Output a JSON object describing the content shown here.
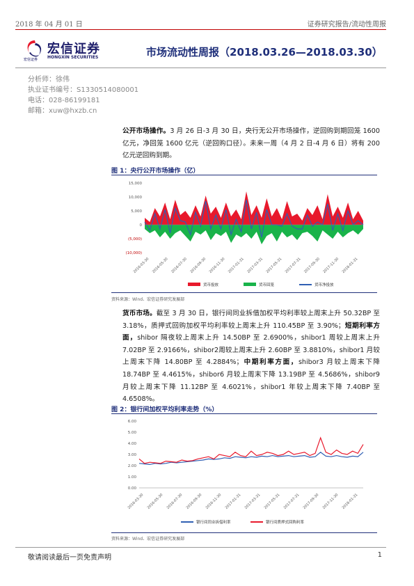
{
  "header": {
    "date": "2018 年 04 月 01 日",
    "category": "证券研究报告/流动性周报",
    "logo_cn": "宏信证券",
    "logo_en": "HONGXIN SECURITIES",
    "logo_small": "宏信证券",
    "title": "市场流动性周报（2018.03.26—2018.03.30）"
  },
  "analyst": {
    "name": "分析师：徐伟",
    "license": "执业证书编号：S1330514080001",
    "phone": "电话：028-86199181",
    "email": "邮箱：xuw@hxzb.cn"
  },
  "section1": {
    "lead": "公开市场操作。",
    "text": "3 月 26 日-3 月 30 日，央行无公开市场操作，逆回购到期回笼 1600 亿元，净回笼 1600 亿元（逆回购口径）。未来一周（4 月 2 日-4 月 6 日）将有 200 亿元逆回购到期。"
  },
  "figure1": {
    "title": "图 1：央行公开市场操作（亿）",
    "source": "资料来源：Wind、宏信证券研究发展部"
  },
  "section2": {
    "lead": "货币市场。",
    "text_a": "截至 3 月 30 日，银行间同业拆借加权平均利率较上周末上升 50.32BP 至 3.18%，质押式回购加权平均利率较上周末上升 110.45BP 至 3.90%；",
    "short_lead": "短期利率方面，",
    "text_b": "shibor 隔夜较上周末上升 14.50BP 至 2.6900%，shibor1 周较上周末上升 7.02BP 至 2.9166%，shibor2周较上周末上升 2.60BP 至 3.8810%，shibor1 月较上周末下降 14.80BP 至 4.2884%；",
    "mid_lead": "中期利率方面，",
    "text_c": "shibor3 月较上周末下降 18.74BP 至 4.4615%，shibor6 月较上周末下降 13.19BP 至 4.5686%，shibor9 月较上周末下降 11.12BP 至 4.6021%，shibor1 年较上周末下降 7.40BP 至 4.6508%。"
  },
  "figure2": {
    "title": "图 2：银行间加权平均利率走势（%）",
    "source": "资料来源：Wind、宏信证券研究发展部"
  },
  "footer": {
    "disclaimer": "敬请阅读最后一页免责声明",
    "page": "1"
  },
  "chart_data": [
    {
      "type": "area",
      "title": "图 1：央行公开市场操作（亿）",
      "y_ticks": [
        "15,000",
        "10,000",
        "5,000",
        "0",
        "(5,000)",
        "(10,000)"
      ],
      "ylim": [
        -10000,
        15000
      ],
      "x_ticks": [
        "2016-03-30",
        "2016-05-30",
        "2016-07-30",
        "2016-09-30",
        "2016-11-30",
        "2017-01-31",
        "2017-03-31",
        "2017-05-31",
        "2017-07-31",
        "2017-09-30",
        "2017-11-30",
        "2018-01-31"
      ],
      "series": [
        {
          "name": "货币投放",
          "color": "#e8192c",
          "values": [
            2500,
            1000,
            6000,
            3000,
            8000,
            2000,
            9000,
            3500,
            5000,
            2500,
            7000,
            3000,
            10500,
            4000,
            6500,
            2500,
            8000,
            3000,
            5500,
            2000,
            12000,
            3500,
            7000,
            2500,
            9500,
            3000,
            6000,
            2000,
            8500,
            3000,
            4000,
            1500,
            6000,
            3500,
            7000,
            2000,
            11000,
            3000,
            6500,
            2500,
            8000,
            2000,
            5000,
            1500
          ]
        },
        {
          "name": "货币回笼",
          "color": "#19b34a",
          "values": [
            -1500,
            -3000,
            -2000,
            -4500,
            -2500,
            -5000,
            -3000,
            -2000,
            -4000,
            -6000,
            -2500,
            -3500,
            -2000,
            -5500,
            -3000,
            -4000,
            -2500,
            -6500,
            -3500,
            -4500,
            -3000,
            -5000,
            -2500,
            -7000,
            -4000,
            -3000,
            -6000,
            -2500,
            -4500,
            -3500,
            -5500,
            -3000,
            -2500,
            -4000,
            -6000,
            -2000,
            -3500,
            -5000,
            -2500,
            -4500,
            -3000,
            -2000,
            -3500,
            -1500
          ]
        },
        {
          "name": "货币净投放",
          "color": "#2f5fb3",
          "values": [
            1000,
            -2000,
            4000,
            -1500,
            5500,
            -3000,
            6000,
            1500,
            1000,
            -3500,
            4500,
            -500,
            8500,
            -1500,
            3500,
            -1500,
            5500,
            -3500,
            2000,
            -2500,
            9000,
            -1500,
            4500,
            -4500,
            5500,
            0,
            0,
            -500,
            4000,
            -500,
            -1500,
            -1500,
            3500,
            -500,
            1000,
            0,
            7500,
            -2000,
            4000,
            -2000,
            5000,
            0,
            1500,
            0
          ]
        }
      ]
    },
    {
      "type": "line",
      "title": "图 2：银行间加权平均利率走势（%）",
      "y_ticks": [
        "6.00",
        "5.00",
        "4.00",
        "3.00",
        "2.00",
        "1.00",
        "0.00"
      ],
      "ylim": [
        0,
        6
      ],
      "x_ticks": [
        "2016-03-30",
        "2016-05-30",
        "2016-07-30",
        "2016-09-30",
        "2016-11-30",
        "2017-01-31",
        "2017-03-31",
        "2017-05-31",
        "2017-07-31",
        "2017-09-30",
        "2017-11-30",
        "2018-01-31"
      ],
      "series": [
        {
          "name": "银行间同业拆借利率",
          "color": "#2f5fb3",
          "values": [
            2.2,
            2.15,
            2.1,
            2.2,
            2.15,
            2.2,
            2.3,
            2.25,
            2.3,
            2.35,
            2.4,
            2.45,
            2.5,
            2.6,
            2.55,
            2.6,
            2.7,
            2.65,
            2.8,
            2.75,
            2.7,
            2.8,
            2.75,
            2.85,
            2.8,
            2.9,
            2.8,
            2.85,
            2.9,
            2.8,
            2.85,
            2.9,
            2.75,
            2.8,
            3.2,
            2.85,
            2.8,
            2.9,
            2.8,
            2.75,
            2.85,
            2.8,
            3.2
          ]
        },
        {
          "name": "银行间质押式回购利率",
          "color": "#e8192c",
          "values": [
            2.6,
            2.2,
            2.3,
            2.25,
            2.2,
            2.4,
            2.35,
            2.3,
            2.5,
            2.4,
            2.45,
            2.6,
            2.7,
            2.8,
            2.6,
            3.0,
            2.9,
            2.8,
            3.2,
            2.9,
            2.8,
            3.3,
            2.9,
            3.0,
            3.2,
            3.1,
            2.9,
            3.0,
            3.3,
            3.0,
            3.1,
            3.2,
            2.9,
            3.1,
            4.5,
            3.2,
            3.0,
            3.4,
            3.1,
            3.0,
            3.3,
            3.1,
            3.9
          ]
        }
      ]
    }
  ]
}
